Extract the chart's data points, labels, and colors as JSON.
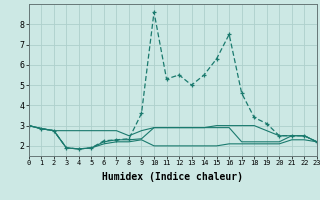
{
  "xlabel": "Humidex (Indice chaleur)",
  "x": [
    0,
    1,
    2,
    3,
    4,
    5,
    6,
    7,
    8,
    9,
    10,
    11,
    12,
    13,
    14,
    15,
    16,
    17,
    18,
    19,
    20,
    21,
    22,
    23
  ],
  "line1": [
    3.0,
    2.85,
    2.75,
    1.9,
    1.85,
    1.9,
    2.25,
    2.3,
    2.35,
    3.6,
    8.6,
    5.3,
    5.5,
    5.0,
    5.5,
    6.3,
    7.5,
    4.6,
    3.4,
    3.1,
    2.5,
    2.5,
    2.5,
    2.2
  ],
  "line2": [
    3.0,
    2.85,
    2.75,
    2.75,
    2.75,
    2.75,
    2.75,
    2.75,
    2.5,
    2.75,
    2.9,
    2.9,
    2.9,
    2.9,
    2.9,
    3.0,
    3.0,
    3.0,
    3.0,
    2.75,
    2.5,
    2.5,
    2.5,
    2.2
  ],
  "line3": [
    3.0,
    2.85,
    2.75,
    1.9,
    1.85,
    1.9,
    2.2,
    2.3,
    2.3,
    2.35,
    2.9,
    2.9,
    2.9,
    2.9,
    2.9,
    2.9,
    2.9,
    2.2,
    2.2,
    2.2,
    2.2,
    2.5,
    2.5,
    2.2
  ],
  "line4": [
    3.0,
    2.85,
    2.75,
    1.9,
    1.85,
    1.9,
    2.1,
    2.2,
    2.2,
    2.3,
    2.0,
    2.0,
    2.0,
    2.0,
    2.0,
    2.0,
    2.1,
    2.1,
    2.1,
    2.1,
    2.1,
    2.3,
    2.3,
    2.2
  ],
  "line_color": "#1a7a6e",
  "bg_color": "#cce8e4",
  "grid_color": "#aed0cc",
  "ylim": [
    1.5,
    9.0
  ],
  "xlim": [
    0,
    23
  ]
}
